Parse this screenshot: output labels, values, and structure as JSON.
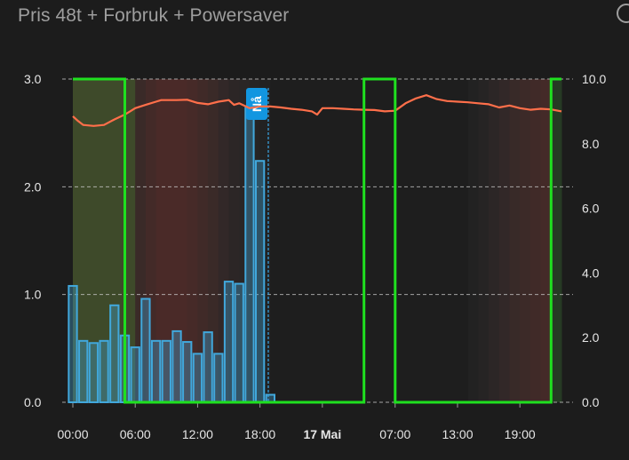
{
  "card": {
    "title": "Pris 48t + Forbruk + Powersaver"
  },
  "icons": {
    "corner": "circle-icon"
  },
  "chart_data": {
    "type": "bar",
    "title": "Pris 48t + Forbruk + Powersaver",
    "x_range_hours": [
      0,
      47
    ],
    "left_axis": {
      "range": [
        0,
        3.0
      ],
      "ticks": [
        "0.0",
        "1.0",
        "2.0",
        "3.0"
      ]
    },
    "right_axis": {
      "range": [
        0,
        10.0
      ],
      "ticks": [
        "0.0",
        "2.0",
        "4.0",
        "6.0",
        "8.0",
        "10.0"
      ]
    },
    "x_ticks": [
      {
        "hour": 0,
        "label": "00:00",
        "bold": false
      },
      {
        "hour": 6,
        "label": "06:00",
        "bold": false
      },
      {
        "hour": 12,
        "label": "12:00",
        "bold": false
      },
      {
        "hour": 18,
        "label": "18:00",
        "bold": false
      },
      {
        "hour": 24,
        "label": "17 Mai",
        "bold": true
      },
      {
        "hour": 31,
        "label": "07:00",
        "bold": false
      },
      {
        "hour": 37,
        "label": "13:00",
        "bold": false
      },
      {
        "hour": 43,
        "label": "19:00",
        "bold": false
      }
    ],
    "now": {
      "hour": 18.8,
      "label": "Nå"
    },
    "grid": true,
    "series": [
      {
        "type": "bar",
        "axis": "left",
        "color": "#41a8dc",
        "points": [
          [
            0,
            1.08
          ],
          [
            1,
            0.57
          ],
          [
            2,
            0.55
          ],
          [
            3,
            0.57
          ],
          [
            4,
            0.9
          ],
          [
            5,
            0.62
          ],
          [
            6,
            0.51
          ],
          [
            7,
            0.96
          ],
          [
            8,
            0.57
          ],
          [
            9,
            0.57
          ],
          [
            10,
            0.66
          ],
          [
            11,
            0.56
          ],
          [
            12,
            0.45
          ],
          [
            13,
            0.65
          ],
          [
            14,
            0.45
          ],
          [
            15,
            1.12
          ],
          [
            16,
            1.1
          ],
          [
            17,
            2.74
          ],
          [
            18,
            2.24
          ],
          [
            19,
            0.07
          ]
        ]
      },
      {
        "type": "line",
        "axis": "right",
        "color": "#ff6f4a",
        "points": [
          [
            0,
            8.85
          ],
          [
            0.5,
            8.7
          ],
          [
            1,
            8.58
          ],
          [
            2,
            8.55
          ],
          [
            3,
            8.58
          ],
          [
            4,
            8.75
          ],
          [
            5,
            8.9
          ],
          [
            5.5,
            9.0
          ],
          [
            6,
            9.1
          ],
          [
            7,
            9.2
          ],
          [
            8,
            9.3
          ],
          [
            8.5,
            9.35
          ],
          [
            9,
            9.35
          ],
          [
            10,
            9.35
          ],
          [
            11,
            9.36
          ],
          [
            12,
            9.26
          ],
          [
            13,
            9.22
          ],
          [
            14,
            9.3
          ],
          [
            15,
            9.35
          ],
          [
            15.5,
            9.2
          ],
          [
            16,
            9.25
          ],
          [
            17,
            9.1
          ],
          [
            18,
            9.15
          ],
          [
            19,
            9.15
          ],
          [
            20,
            9.12
          ],
          [
            21,
            9.08
          ],
          [
            22,
            9.05
          ],
          [
            23,
            9.0
          ],
          [
            23.5,
            8.9
          ],
          [
            24,
            9.1
          ],
          [
            25,
            9.1
          ],
          [
            26,
            9.08
          ],
          [
            27,
            9.06
          ],
          [
            28,
            9.05
          ],
          [
            29,
            9.04
          ],
          [
            30,
            9.0
          ],
          [
            31,
            9.02
          ],
          [
            32,
            9.25
          ],
          [
            33,
            9.4
          ],
          [
            34,
            9.5
          ],
          [
            35,
            9.38
          ],
          [
            36,
            9.32
          ],
          [
            37,
            9.3
          ],
          [
            38,
            9.28
          ],
          [
            39,
            9.25
          ],
          [
            40,
            9.22
          ],
          [
            41,
            9.12
          ],
          [
            42,
            9.18
          ],
          [
            43,
            9.1
          ],
          [
            44,
            9.05
          ],
          [
            45,
            9.08
          ],
          [
            46,
            9.06
          ],
          [
            47,
            9.0
          ]
        ]
      },
      {
        "type": "step",
        "axis": "left",
        "color": "#1fe01f",
        "points": [
          [
            0,
            3.0
          ],
          [
            5,
            3.0
          ],
          [
            5,
            0
          ],
          [
            28,
            0
          ],
          [
            28,
            3.0
          ],
          [
            31,
            3.0
          ],
          [
            31,
            0
          ],
          [
            46,
            0
          ],
          [
            46,
            3.0
          ],
          [
            47,
            3.0
          ]
        ]
      }
    ],
    "background_shading": {
      "colors": [
        "#3e4a2a",
        "#3e4a2a",
        "#3e4a2a",
        "#3e4a2a",
        "#3e4a2a",
        "#3e4a2a",
        "#3a2a28",
        "#432a28",
        "#4a2a28",
        "#4a2a28",
        "#4a2a28",
        "#462a28",
        "#402a28",
        "#3a2a28",
        "#322828",
        "#2c2626",
        "#2a2626",
        "#262424",
        "#222222",
        "#1e1e1e",
        "#1e1e1e",
        "#1e1e1e",
        "#1e1e1e",
        "#1e1e1e",
        "#1e1e1e",
        "#1e1e1e",
        "#1e1e1e",
        "#1e1e1e",
        "#1e1e1e",
        "#1e1e1e",
        "#1e1e1e",
        "#1e1e1e",
        "#1e1e1e",
        "#1e1e1e",
        "#1e1e1e",
        "#1e1e1e",
        "#1e1e1e",
        "#1e1e1e",
        "#222222",
        "#262424",
        "#2c2626",
        "#322828",
        "#382a28",
        "#3c2a28",
        "#402a28",
        "#442a28",
        "#263a24",
        "#263a24"
      ]
    }
  }
}
